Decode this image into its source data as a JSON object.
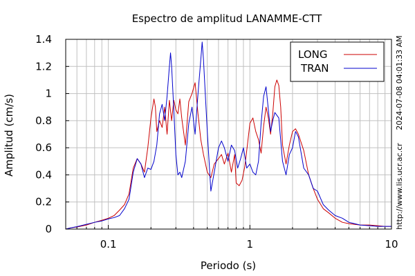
{
  "chart_data": {
    "type": "line",
    "title": "Espectro de amplitud LANAMME-CTT",
    "xlabel": "Periodo (s)",
    "ylabel": "Amplitud (cm/s)",
    "x_scale": "log",
    "xlim": [
      0.05,
      10
    ],
    "ylim": [
      0,
      1.4
    ],
    "x_ticks": [
      {
        "value": 0.1,
        "label": "0.1"
      },
      {
        "value": 1,
        "label": "1"
      },
      {
        "value": 10,
        "label": "10"
      }
    ],
    "y_ticks": [
      {
        "value": 0,
        "label": "0"
      },
      {
        "value": 0.2,
        "label": "0.2"
      },
      {
        "value": 0.4,
        "label": "0.4"
      },
      {
        "value": 0.6,
        "label": "0.6"
      },
      {
        "value": 0.8,
        "label": "0.8"
      },
      {
        "value": 1,
        "label": "1"
      },
      {
        "value": 1.2,
        "label": "1.2"
      },
      {
        "value": 1.4,
        "label": "1.4"
      }
    ],
    "grid": true,
    "legend_position": "top-right",
    "side_texts": [
      "2024-07-08 04:01:33 AM",
      "http://www.lis.ucr.ac.cr"
    ],
    "series": [
      {
        "name": "LONG",
        "color": "#cc0000",
        "points": [
          [
            0.05,
            0.0
          ],
          [
            0.055,
            0.01
          ],
          [
            0.06,
            0.015
          ],
          [
            0.07,
            0.03
          ],
          [
            0.08,
            0.05
          ],
          [
            0.09,
            0.065
          ],
          [
            0.1,
            0.08
          ],
          [
            0.11,
            0.1
          ],
          [
            0.12,
            0.14
          ],
          [
            0.13,
            0.18
          ],
          [
            0.14,
            0.26
          ],
          [
            0.15,
            0.45
          ],
          [
            0.16,
            0.52
          ],
          [
            0.17,
            0.48
          ],
          [
            0.18,
            0.42
          ],
          [
            0.19,
            0.6
          ],
          [
            0.2,
            0.82
          ],
          [
            0.21,
            0.96
          ],
          [
            0.215,
            0.9
          ],
          [
            0.22,
            0.72
          ],
          [
            0.23,
            0.8
          ],
          [
            0.24,
            0.75
          ],
          [
            0.25,
            0.9
          ],
          [
            0.26,
            0.7
          ],
          [
            0.27,
            0.95
          ],
          [
            0.28,
            0.8
          ],
          [
            0.29,
            0.95
          ],
          [
            0.3,
            0.88
          ],
          [
            0.31,
            0.85
          ],
          [
            0.32,
            0.96
          ],
          [
            0.33,
            0.82
          ],
          [
            0.35,
            0.62
          ],
          [
            0.37,
            0.94
          ],
          [
            0.39,
            1.0
          ],
          [
            0.41,
            1.08
          ],
          [
            0.43,
            0.85
          ],
          [
            0.45,
            0.66
          ],
          [
            0.47,
            0.55
          ],
          [
            0.5,
            0.42
          ],
          [
            0.53,
            0.38
          ],
          [
            0.56,
            0.48
          ],
          [
            0.6,
            0.52
          ],
          [
            0.63,
            0.55
          ],
          [
            0.66,
            0.48
          ],
          [
            0.7,
            0.56
          ],
          [
            0.74,
            0.42
          ],
          [
            0.78,
            0.55
          ],
          [
            0.8,
            0.34
          ],
          [
            0.84,
            0.32
          ],
          [
            0.88,
            0.36
          ],
          [
            0.92,
            0.46
          ],
          [
            0.96,
            0.62
          ],
          [
            1.0,
            0.78
          ],
          [
            1.05,
            0.82
          ],
          [
            1.1,
            0.72
          ],
          [
            1.15,
            0.66
          ],
          [
            1.2,
            0.56
          ],
          [
            1.25,
            0.76
          ],
          [
            1.3,
            0.9
          ],
          [
            1.35,
            0.82
          ],
          [
            1.4,
            0.7
          ],
          [
            1.45,
            0.85
          ],
          [
            1.5,
            1.05
          ],
          [
            1.55,
            1.1
          ],
          [
            1.6,
            1.06
          ],
          [
            1.65,
            0.9
          ],
          [
            1.7,
            0.62
          ],
          [
            1.8,
            0.48
          ],
          [
            1.9,
            0.62
          ],
          [
            2.0,
            0.72
          ],
          [
            2.1,
            0.74
          ],
          [
            2.2,
            0.7
          ],
          [
            2.4,
            0.58
          ],
          [
            2.6,
            0.4
          ],
          [
            2.8,
            0.3
          ],
          [
            3.0,
            0.22
          ],
          [
            3.3,
            0.15
          ],
          [
            3.6,
            0.12
          ],
          [
            4.0,
            0.08
          ],
          [
            4.5,
            0.05
          ],
          [
            5.0,
            0.04
          ],
          [
            6.0,
            0.03
          ],
          [
            7.0,
            0.03
          ],
          [
            8.0,
            0.025
          ],
          [
            9.0,
            0.02
          ],
          [
            10.0,
            0.02
          ]
        ]
      },
      {
        "name": "TRAN",
        "color": "#0000cc",
        "points": [
          [
            0.05,
            0.0
          ],
          [
            0.055,
            0.01
          ],
          [
            0.06,
            0.018
          ],
          [
            0.07,
            0.035
          ],
          [
            0.08,
            0.05
          ],
          [
            0.09,
            0.06
          ],
          [
            0.1,
            0.075
          ],
          [
            0.11,
            0.085
          ],
          [
            0.12,
            0.1
          ],
          [
            0.13,
            0.15
          ],
          [
            0.14,
            0.22
          ],
          [
            0.15,
            0.42
          ],
          [
            0.16,
            0.52
          ],
          [
            0.17,
            0.48
          ],
          [
            0.18,
            0.38
          ],
          [
            0.19,
            0.45
          ],
          [
            0.2,
            0.44
          ],
          [
            0.21,
            0.5
          ],
          [
            0.22,
            0.62
          ],
          [
            0.23,
            0.85
          ],
          [
            0.24,
            0.92
          ],
          [
            0.25,
            0.8
          ],
          [
            0.26,
            0.98
          ],
          [
            0.27,
            1.2
          ],
          [
            0.275,
            1.3
          ],
          [
            0.28,
            1.2
          ],
          [
            0.29,
            0.88
          ],
          [
            0.3,
            0.55
          ],
          [
            0.31,
            0.4
          ],
          [
            0.32,
            0.42
          ],
          [
            0.33,
            0.38
          ],
          [
            0.35,
            0.5
          ],
          [
            0.37,
            0.78
          ],
          [
            0.39,
            0.9
          ],
          [
            0.41,
            0.7
          ],
          [
            0.43,
            1.0
          ],
          [
            0.45,
            1.25
          ],
          [
            0.46,
            1.38
          ],
          [
            0.47,
            1.25
          ],
          [
            0.5,
            0.72
          ],
          [
            0.53,
            0.28
          ],
          [
            0.56,
            0.42
          ],
          [
            0.6,
            0.6
          ],
          [
            0.63,
            0.65
          ],
          [
            0.66,
            0.6
          ],
          [
            0.7,
            0.5
          ],
          [
            0.74,
            0.62
          ],
          [
            0.78,
            0.58
          ],
          [
            0.82,
            0.45
          ],
          [
            0.86,
            0.52
          ],
          [
            0.9,
            0.6
          ],
          [
            0.95,
            0.45
          ],
          [
            1.0,
            0.48
          ],
          [
            1.05,
            0.42
          ],
          [
            1.1,
            0.4
          ],
          [
            1.15,
            0.5
          ],
          [
            1.2,
            0.78
          ],
          [
            1.25,
            0.98
          ],
          [
            1.3,
            1.05
          ],
          [
            1.35,
            0.88
          ],
          [
            1.4,
            0.72
          ],
          [
            1.45,
            0.8
          ],
          [
            1.5,
            0.86
          ],
          [
            1.6,
            0.82
          ],
          [
            1.7,
            0.5
          ],
          [
            1.8,
            0.4
          ],
          [
            1.9,
            0.55
          ],
          [
            2.0,
            0.6
          ],
          [
            2.1,
            0.72
          ],
          [
            2.2,
            0.68
          ],
          [
            2.4,
            0.45
          ],
          [
            2.6,
            0.4
          ],
          [
            2.8,
            0.3
          ],
          [
            3.0,
            0.28
          ],
          [
            3.3,
            0.18
          ],
          [
            3.6,
            0.14
          ],
          [
            4.0,
            0.1
          ],
          [
            4.5,
            0.08
          ],
          [
            5.0,
            0.05
          ],
          [
            6.0,
            0.03
          ],
          [
            7.0,
            0.025
          ],
          [
            8.0,
            0.02
          ],
          [
            9.0,
            0.02
          ],
          [
            10.0,
            0.02
          ]
        ]
      }
    ]
  }
}
